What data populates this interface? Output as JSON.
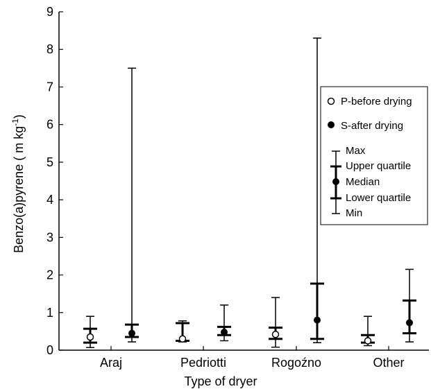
{
  "chart_data": {
    "type": "boxplot",
    "xlabel": "Type of dryer",
    "ylabel": "Benzo(a)pyrene (  m kg",
    "ylabel_sup": "-1",
    "ylabel_close": ")",
    "ylim": [
      0,
      9
    ],
    "yticks": [
      0,
      1,
      2,
      3,
      4,
      5,
      6,
      7,
      8,
      9
    ],
    "categories": [
      "Araj",
      "Pedriotti",
      "Rogoźno",
      "Other"
    ],
    "series": [
      {
        "name": "P-before drying",
        "marker": "open-circle",
        "stats": [
          {
            "min": 0.07,
            "q1": 0.2,
            "median": 0.35,
            "q3": 0.57,
            "max": 0.9
          },
          {
            "min": 0.22,
            "q1": 0.25,
            "median": 0.3,
            "q3": 0.72,
            "max": 0.78
          },
          {
            "min": 0.08,
            "q1": 0.3,
            "median": 0.42,
            "q3": 0.6,
            "max": 1.4
          },
          {
            "min": 0.12,
            "q1": 0.2,
            "median": 0.25,
            "q3": 0.4,
            "max": 0.9
          }
        ]
      },
      {
        "name": "S-after drying",
        "marker": "filled-circle",
        "stats": [
          {
            "min": 0.22,
            "q1": 0.35,
            "median": 0.45,
            "q3": 0.68,
            "max": 7.5
          },
          {
            "min": 0.25,
            "q1": 0.4,
            "median": 0.48,
            "q3": 0.62,
            "max": 1.2
          },
          {
            "min": 0.2,
            "q1": 0.3,
            "median": 0.8,
            "q3": 1.77,
            "max": 8.3
          },
          {
            "min": 0.22,
            "q1": 0.45,
            "median": 0.73,
            "q3": 1.32,
            "max": 2.15
          }
        ]
      }
    ],
    "legend": {
      "position": "right",
      "entries": [
        "P-before drying",
        "S-after drying"
      ],
      "key_labels": [
        "Max",
        "Upper quartile",
        "Median",
        "Lower quartile",
        "Min"
      ]
    },
    "grid": false
  }
}
